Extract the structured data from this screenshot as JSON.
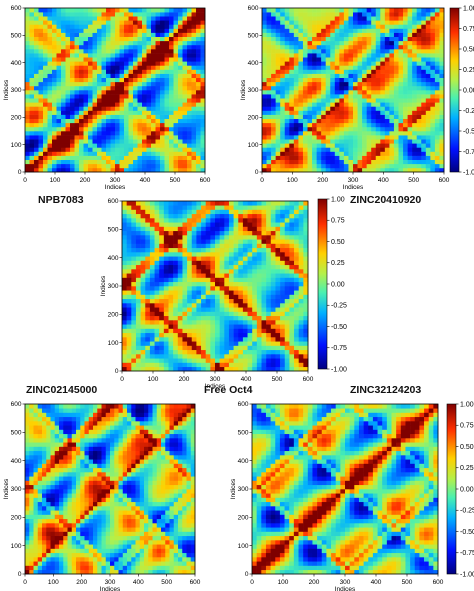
{
  "figure": {
    "colorbar_ticks": [
      "1.00",
      "0.75",
      "0.50",
      "0.25",
      "0.00",
      "-0.25",
      "-0.50",
      "-0.75",
      "-1.00"
    ],
    "colorscale": [
      "#00007f",
      "#0010ff",
      "#00b0ff",
      "#4af0b0",
      "#b4f04a",
      "#ffd000",
      "#ff3000",
      "#7f0000"
    ]
  },
  "chart_data": [
    {
      "type": "heatmap",
      "title": "NPB7083",
      "xlabel": "Indices",
      "ylabel": "Indices",
      "xlim": [
        0,
        600
      ],
      "ylim": [
        0,
        600
      ],
      "xticks": [
        "0",
        "100",
        "200",
        "300",
        "400",
        "500",
        "600"
      ],
      "yticks": [
        "0",
        "100",
        "200",
        "300",
        "400",
        "500",
        "600"
      ],
      "zlim": [
        -1.0,
        1.0
      ],
      "colorbar": false
    },
    {
      "type": "heatmap",
      "title": "ZINC20410920",
      "xlabel": "Indices",
      "ylabel": "Indices",
      "xlim": [
        0,
        600
      ],
      "ylim": [
        0,
        600
      ],
      "xticks": [
        "0",
        "100",
        "200",
        "300",
        "400",
        "500",
        "600"
      ],
      "yticks": [
        "0",
        "100",
        "200",
        "300",
        "400",
        "500",
        "600"
      ],
      "zlim": [
        -1.0,
        1.0
      ],
      "colorbar": true
    },
    {
      "type": "heatmap",
      "title": "Free Oct4",
      "xlabel": "Indices",
      "ylabel": "Indices",
      "xlim": [
        0,
        600
      ],
      "ylim": [
        0,
        600
      ],
      "xticks": [
        "0",
        "100",
        "200",
        "300",
        "400",
        "500",
        "600"
      ],
      "yticks": [
        "0",
        "100",
        "200",
        "300",
        "400",
        "500",
        "600"
      ],
      "zlim": [
        -1.0,
        1.0
      ],
      "colorbar": true
    },
    {
      "type": "heatmap",
      "title": "ZINC02145000",
      "xlabel": "Indices",
      "ylabel": "Indices",
      "xlim": [
        0,
        600
      ],
      "ylim": [
        0,
        600
      ],
      "xticks": [
        "0",
        "100",
        "200",
        "300",
        "400",
        "500",
        "600"
      ],
      "yticks": [
        "0",
        "100",
        "200",
        "300",
        "400",
        "500",
        "600"
      ],
      "zlim": [
        -1.0,
        1.0
      ],
      "colorbar": false
    },
    {
      "type": "heatmap",
      "title": "ZINC32124203",
      "xlabel": "Indices",
      "ylabel": "Indices",
      "xlim": [
        0,
        600
      ],
      "ylim": [
        0,
        600
      ],
      "xticks": [
        "0",
        "100",
        "200",
        "300",
        "400",
        "500",
        "600"
      ],
      "yticks": [
        "0",
        "100",
        "200",
        "300",
        "400",
        "500",
        "600"
      ],
      "zlim": [
        -1.0,
        1.0
      ],
      "colorbar": true
    }
  ]
}
